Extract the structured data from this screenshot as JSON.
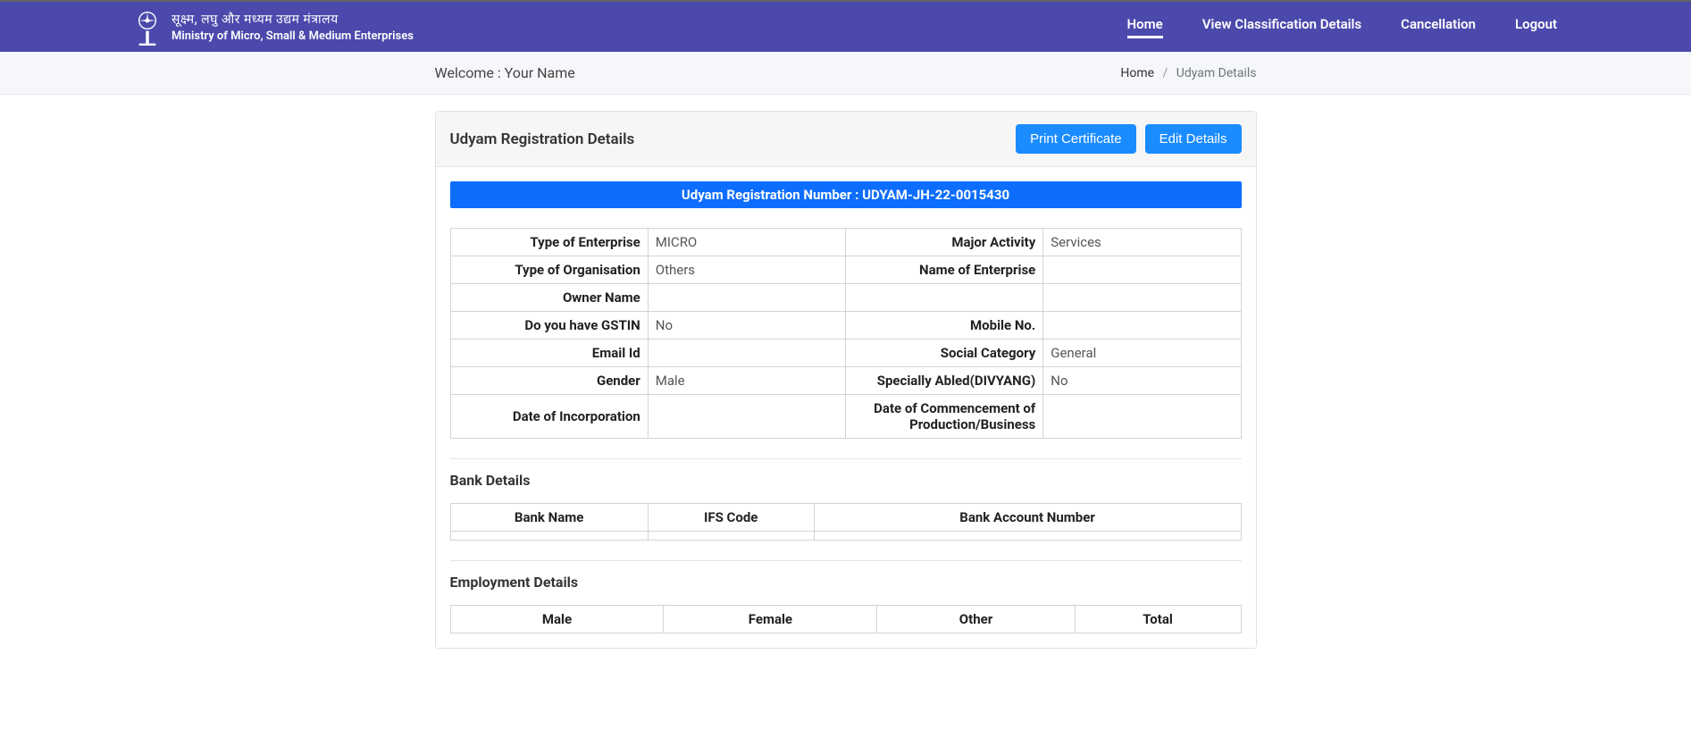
{
  "header": {
    "ministry_line1": "सूक्ष्म, लघु और मध्यम उद्यम मंत्रालय",
    "ministry_line2": "Ministry of Micro, Small & Medium Enterprises",
    "nav": {
      "home": "Home",
      "classification": "View Classification Details",
      "cancellation": "Cancellation",
      "logout": "Logout"
    }
  },
  "welcome": {
    "prefix": "Welcome : ",
    "name": "Your Name"
  },
  "breadcrumb": {
    "home": "Home",
    "current": "Udyam Details"
  },
  "panel": {
    "title": "Udyam Registration Details",
    "print_btn": "Print Certificate",
    "edit_btn": "Edit Details"
  },
  "registration": {
    "label": "Udyam Registration Number   :  ",
    "number": "UDYAM-JH-22-0015430"
  },
  "details": {
    "rows": [
      {
        "l_label": "Type of Enterprise",
        "l_value": "MICRO",
        "r_label": "Major Activity",
        "r_value": "Services"
      },
      {
        "l_label": "Type of Organisation",
        "l_value": "Others",
        "r_label": "Name of Enterprise",
        "r_value": ""
      },
      {
        "l_label": "Owner Name",
        "l_value": "",
        "r_label": "",
        "r_value": ""
      },
      {
        "l_label": "Do you have GSTIN",
        "l_value": "No",
        "r_label": "Mobile No.",
        "r_value": ""
      },
      {
        "l_label": "Email Id",
        "l_value": "",
        "r_label": "Social Category",
        "r_value": "General"
      },
      {
        "l_label": "Gender",
        "l_value": "Male",
        "r_label": "Specially Abled(DIVYANG)",
        "r_value": "No"
      },
      {
        "l_label": "Date of Incorporation",
        "l_value": "",
        "r_label": "Date of Commencement of Production/Business",
        "r_value": ""
      }
    ]
  },
  "bank": {
    "title": "Bank Details",
    "columns": [
      "Bank Name",
      "IFS Code",
      "Bank Account Number"
    ]
  },
  "employment": {
    "title": "Employment Details",
    "columns": [
      "Male",
      "Female",
      "Other",
      "Total"
    ]
  },
  "colors": {
    "navbar_bg": "#4b49ac",
    "primary_btn": "#1a8cff",
    "reg_bar_bg": "#0d6efd"
  }
}
